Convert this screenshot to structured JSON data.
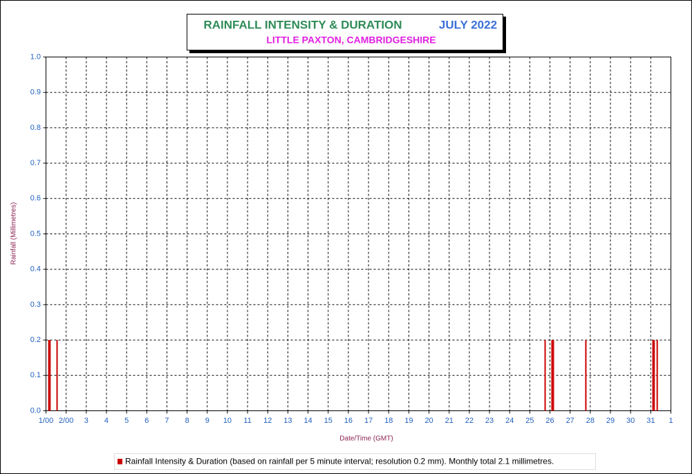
{
  "chart_data": {
    "type": "bar",
    "title": "RAINFALL INTENSITY & DURATION",
    "title_date": "JULY 2022",
    "subtitle": "LITTLE PAXTON, CAMBRIDGESHIRE",
    "y_label": "Rainfall (Millimetres)",
    "x_label": "Date/Time (GMT)",
    "series": [
      {
        "name": "Rainfall Intensity & Duration (based on rainfall per 5 minute interval; resolution 0.2 mm). Monthly total 2.1 millimetres.",
        "color": "#cc0000",
        "x": [
          1.14,
          1.2,
          1.55,
          25.76,
          26.1,
          26.17,
          27.78,
          31.11,
          31.17,
          31.32
        ],
        "values": [
          0.2,
          0.2,
          0.2,
          0.2,
          0.2,
          0.2,
          0.2,
          0.2,
          0.2,
          0.2
        ]
      }
    ],
    "xlim": [
      1,
      32
    ],
    "xticks": [
      {
        "value": 1,
        "label": "1/00"
      },
      {
        "value": 2,
        "label": "2/00"
      },
      3,
      4,
      5,
      6,
      7,
      8,
      9,
      10,
      11,
      12,
      13,
      14,
      15,
      16,
      17,
      18,
      19,
      20,
      21,
      22,
      23,
      24,
      25,
      26,
      27,
      28,
      29,
      30,
      31,
      {
        "value": 32,
        "label": "1"
      }
    ],
    "ylim": [
      0,
      1
    ],
    "yticks": [
      {
        "value": 0,
        "label": "0.0"
      },
      0.1,
      0.2,
      0.3,
      0.4,
      0.5,
      0.6,
      0.7,
      0.8,
      0.9,
      {
        "value": 1,
        "label": "1.0"
      }
    ],
    "grid": true
  }
}
